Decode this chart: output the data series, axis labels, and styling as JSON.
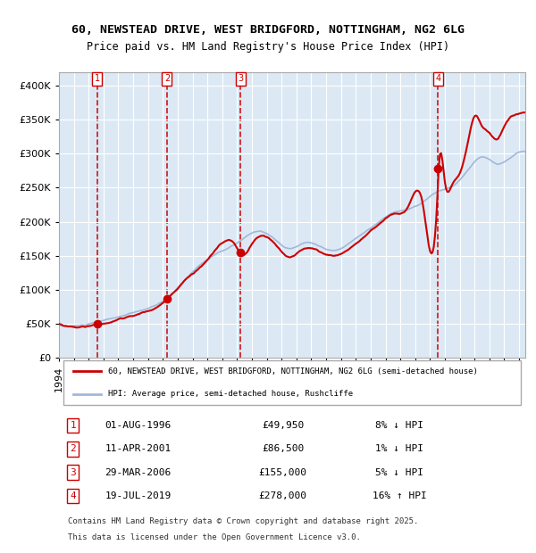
{
  "title1": "60, NEWSTEAD DRIVE, WEST BRIDGFORD, NOTTINGHAM, NG2 6LG",
  "title2": "Price paid vs. HM Land Registry's House Price Index (HPI)",
  "xlabel": "",
  "ylabel": "",
  "bg_color": "#dce9f5",
  "plot_bg_color": "#dce9f5",
  "hpi_color": "#a0b8d8",
  "price_color": "#cc0000",
  "sale_marker_color": "#cc0000",
  "vline_color": "#cc0000",
  "ylim": [
    0,
    420000
  ],
  "yticks": [
    0,
    50000,
    100000,
    150000,
    200000,
    250000,
    300000,
    350000,
    400000
  ],
  "ytick_labels": [
    "£0",
    "£50K",
    "£100K",
    "£150K",
    "£200K",
    "£250K",
    "£300K",
    "£350K",
    "£400K"
  ],
  "sale_dates": [
    "1996-08-01",
    "2001-04-11",
    "2006-03-29",
    "2019-07-19"
  ],
  "sale_prices": [
    49950,
    86500,
    155000,
    278000
  ],
  "sale_labels": [
    "1",
    "2",
    "3",
    "4"
  ],
  "sale_info": [
    {
      "num": "1",
      "date": "01-AUG-1996",
      "price": "£49,950",
      "pct": "8%",
      "dir": "↓"
    },
    {
      "num": "2",
      "date": "11-APR-2001",
      "price": "£86,500",
      "pct": "1%",
      "dir": "↓"
    },
    {
      "num": "3",
      "date": "29-MAR-2006",
      "price": "£155,000",
      "pct": "5%",
      "dir": "↓"
    },
    {
      "num": "4",
      "date": "19-JUL-2019",
      "price": "£278,000",
      "pct": "16%",
      "dir": "↑"
    }
  ],
  "legend1": "60, NEWSTEAD DRIVE, WEST BRIDGFORD, NOTTINGHAM, NG2 6LG (semi-detached house)",
  "legend2": "HPI: Average price, semi-detached house, Rushcliffe",
  "footer1": "Contains HM Land Registry data © Crown copyright and database right 2025.",
  "footer2": "This data is licensed under the Open Government Licence v3.0.",
  "xstart_year": 1994,
  "xend_year": 2025
}
